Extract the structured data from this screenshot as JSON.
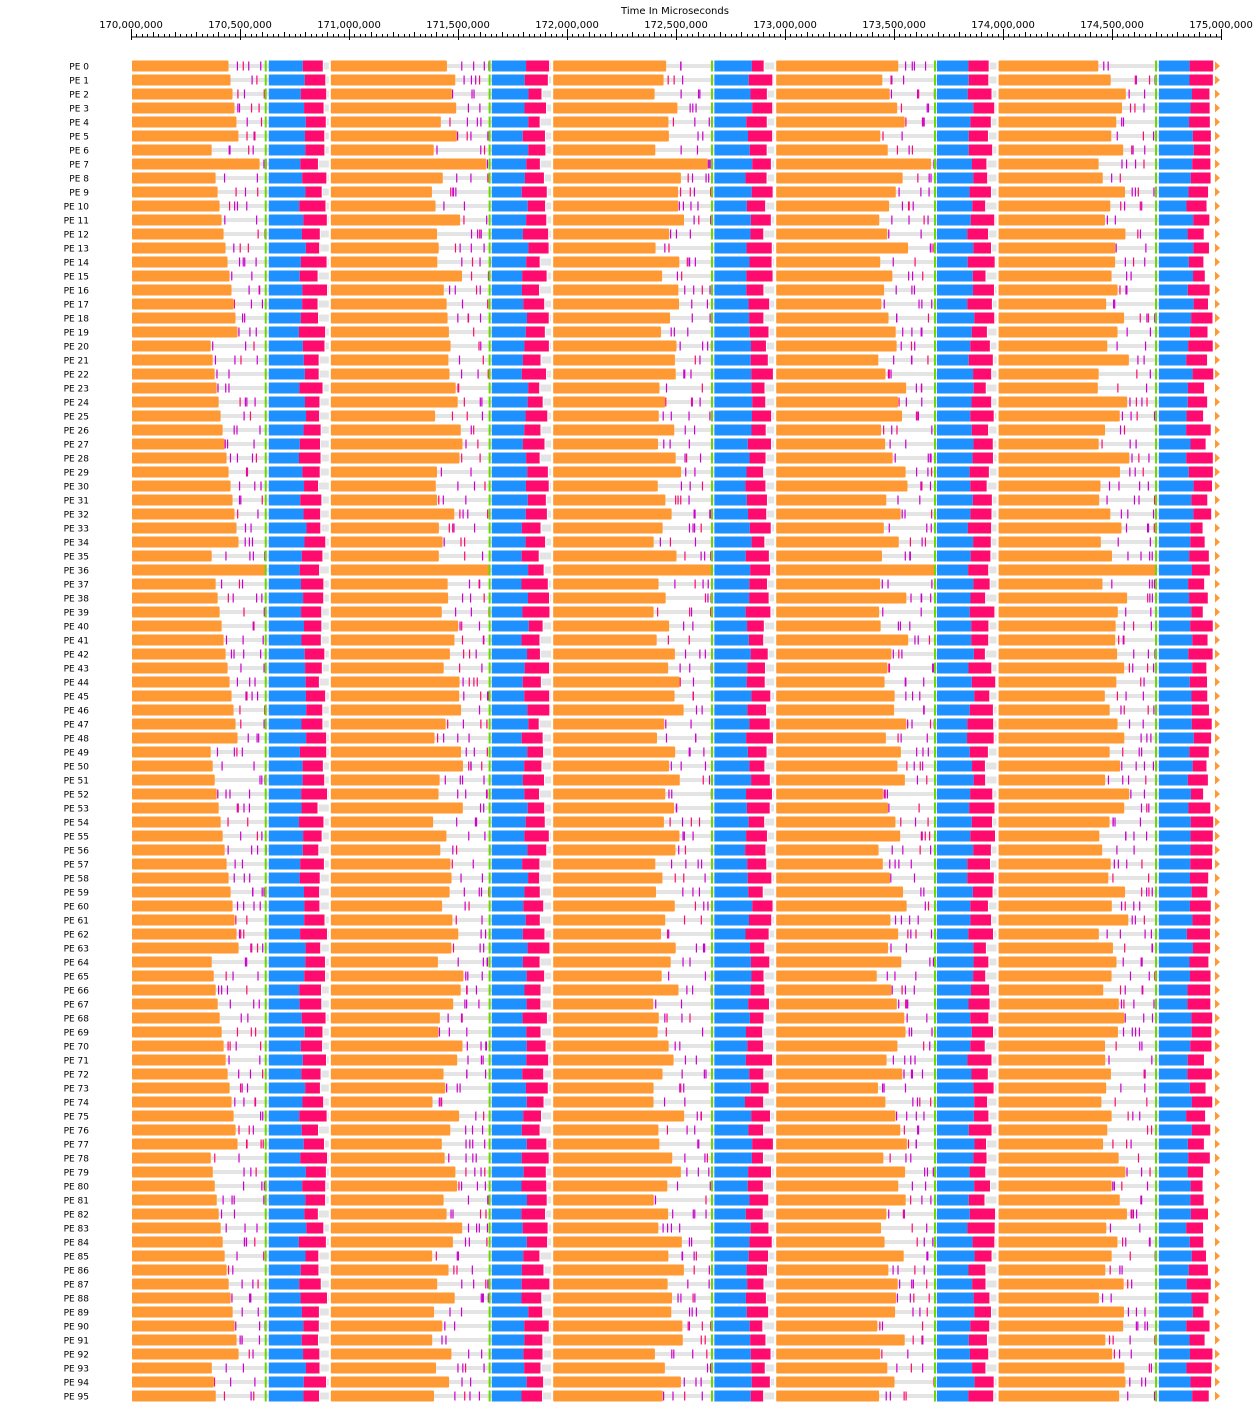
{
  "chart_data": {
    "type": "timeline",
    "title": "Time In Microseconds",
    "x_range": [
      170000000,
      175000000
    ],
    "x_ticks": [
      {
        "value": 170000000,
        "label": "170,000,000"
      },
      {
        "value": 170500000,
        "label": "170,500,000"
      },
      {
        "value": 171000000,
        "label": "171,000,000"
      },
      {
        "value": 171500000,
        "label": "171,500,000"
      },
      {
        "value": 172000000,
        "label": "172,000,000"
      },
      {
        "value": 172500000,
        "label": "172,500,000"
      },
      {
        "value": 173000000,
        "label": "173,000,000"
      },
      {
        "value": 173500000,
        "label": "173,500,000"
      },
      {
        "value": 174000000,
        "label": "174,000,000"
      },
      {
        "value": 174500000,
        "label": "174,500,000"
      },
      {
        "value": 175000000,
        "label": "175,000,000"
      }
    ],
    "rows": [
      "PE 0",
      "PE 1",
      "PE 2",
      "PE 3",
      "PE 4",
      "PE 5",
      "PE 6",
      "PE 7",
      "PE 8",
      "PE 9",
      "PE 10",
      "PE 11",
      "PE 12",
      "PE 13",
      "PE 14",
      "PE 15",
      "PE 16",
      "PE 17",
      "PE 18",
      "PE 19",
      "PE 20",
      "PE 21",
      "PE 22",
      "PE 23",
      "PE 24",
      "PE 25",
      "PE 26",
      "PE 27",
      "PE 28",
      "PE 29",
      "PE 30",
      "PE 31",
      "PE 32",
      "PE 33",
      "PE 34",
      "PE 35",
      "PE 36",
      "PE 37",
      "PE 38",
      "PE 39",
      "PE 40",
      "PE 41",
      "PE 42",
      "PE 43",
      "PE 44",
      "PE 45",
      "PE 46",
      "PE 47",
      "PE 48",
      "PE 49",
      "PE 50",
      "PE 51",
      "PE 52",
      "PE 53",
      "PE 54",
      "PE 55",
      "PE 56",
      "PE 57",
      "PE 58",
      "PE 59",
      "PE 60",
      "PE 61",
      "PE 62",
      "PE 63",
      "PE 64",
      "PE 65",
      "PE 66",
      "PE 67",
      "PE 68",
      "PE 69",
      "PE 70",
      "PE 71",
      "PE 72",
      "PE 73",
      "PE 74",
      "PE 75",
      "PE 76",
      "PE 77",
      "PE 78",
      "PE 79",
      "PE 80",
      "PE 81",
      "PE 82",
      "PE 83",
      "PE 84",
      "PE 85",
      "PE 86",
      "PE 87",
      "PE 88",
      "PE 89",
      "PE 90",
      "PE 91",
      "PE 92",
      "PE 93",
      "PE 94",
      "PE 95"
    ],
    "cycles": [
      {
        "start": 170000000,
        "orange_end_min": 170365000,
        "orange_end_max": 170605000,
        "green_at": 170618000,
        "blue_start": 170632000,
        "blue_end_min": 170770000,
        "blue_end_max": 170805000,
        "pink_end_min": 170855000,
        "pink_end_max": 170900000,
        "next_start": 170912000
      },
      {
        "start": 170912000,
        "orange_end_min": 171380000,
        "orange_end_max": 171645000,
        "green_at": 171645000,
        "blue_start": 171655000,
        "blue_end_min": 171790000,
        "blue_end_max": 171825000,
        "pink_end_min": 171870000,
        "pink_end_max": 171920000,
        "next_start": 171932000
      },
      {
        "start": 171932000,
        "orange_end_min": 172395000,
        "orange_end_max": 172660000,
        "green_at": 172665000,
        "blue_start": 172676000,
        "blue_end_min": 172815000,
        "blue_end_max": 172850000,
        "pink_end_min": 172895000,
        "pink_end_max": 172945000,
        "next_start": 172955000
      },
      {
        "start": 172955000,
        "orange_end_min": 173420000,
        "orange_end_max": 173685000,
        "green_at": 173688000,
        "blue_start": 173697000,
        "blue_end_min": 173835000,
        "blue_end_max": 173870000,
        "pink_end_min": 173915000,
        "pink_end_max": 173965000,
        "next_start": 173975000
      },
      {
        "start": 173975000,
        "orange_end_min": 174435000,
        "orange_end_max": 174700000,
        "green_at": 174702000,
        "blue_start": 174715000,
        "blue_end_min": 174840000,
        "blue_end_max": 174875000,
        "pink_end_min": 174915000,
        "pink_end_max": 174965000,
        "next_start": 175000000
      }
    ],
    "colors": {
      "work": "#ff9933",
      "blue": "#1e90ff",
      "pink": "#ff0a6e",
      "green": "#6ad700",
      "idle": "#e4e4e4",
      "tick_marks": "#cc00cc",
      "axis": "#000000"
    }
  }
}
